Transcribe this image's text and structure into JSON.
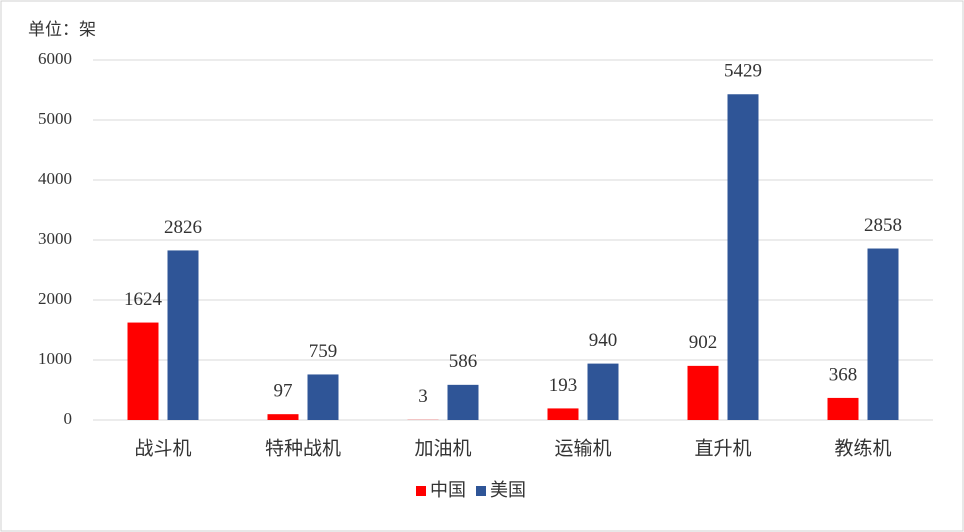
{
  "chart_data": {
    "type": "bar",
    "y_label": "单位：架",
    "categories": [
      "战斗机",
      "特种战机",
      "加油机",
      "运输机",
      "直升机",
      "教练机"
    ],
    "series": [
      {
        "name": "中国",
        "color": "#ff0000",
        "values": [
          1624,
          97,
          3,
          193,
          902,
          368
        ]
      },
      {
        "name": "美国",
        "color": "#2f5597",
        "values": [
          2826,
          759,
          586,
          940,
          5429,
          2858
        ]
      }
    ],
    "ylim": [
      0,
      6000
    ],
    "yticks": [
      0,
      1000,
      2000,
      3000,
      4000,
      5000,
      6000
    ],
    "grid": true,
    "legend": "bottom"
  }
}
